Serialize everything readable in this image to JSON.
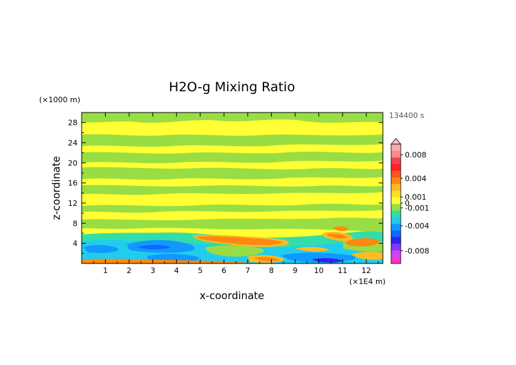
{
  "chart_data": {
    "type": "heatmap",
    "title": "H2O-g Mixing Ratio",
    "xlabel": "x-coordinate",
    "ylabel": "z-coordinate",
    "x_unit": "(×1E4 m)",
    "y_unit": "(×1000 m)",
    "time_label": "134400 s",
    "xlim": [
      0,
      12.7
    ],
    "ylim": [
      0,
      30
    ],
    "x_ticks": [
      "1",
      "2",
      "3",
      "4",
      "5",
      "6",
      "7",
      "8",
      "9",
      "10",
      "11",
      "12"
    ],
    "y_ticks": [
      "4",
      "8",
      "12",
      "16",
      "20",
      "24",
      "28"
    ],
    "colorbar": {
      "tick_labels": [
        "0.008",
        "0.004",
        "0.001",
        "0",
        "-0.001",
        "-0.004",
        "-0.008"
      ],
      "colors": [
        "#ff33cc",
        "#cc44ee",
        "#8833ff",
        "#3322ee",
        "#1166ff",
        "#1199ff",
        "#22ccee",
        "#33ddaa",
        "#99dd44",
        "#ffff33",
        "#ffdd22",
        "#ffbb22",
        "#ff8811",
        "#ff5522",
        "#ff2222",
        "#ee4455",
        "#ff8888",
        "#ffaaaa"
      ]
    },
    "colors": {
      "background_field": "#ffff33",
      "positive_band": "#99dd44",
      "moist_anomaly": "#ff8811",
      "dry_anomaly": "#1199ff"
    }
  }
}
